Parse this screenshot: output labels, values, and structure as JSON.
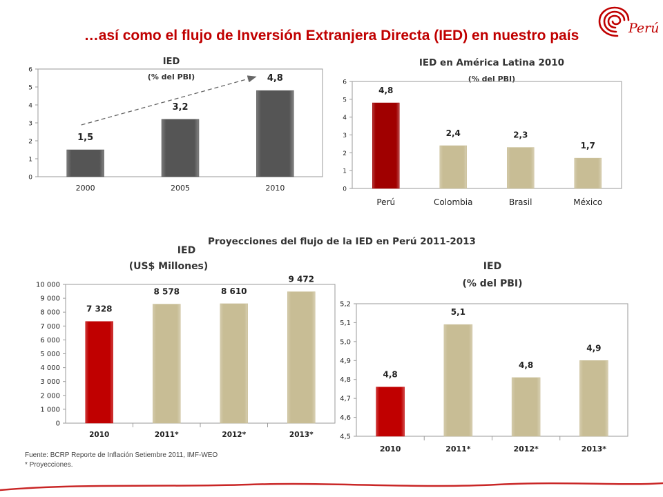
{
  "page": {
    "title": "…así como el flujo de Inversión Extranjera Directa (IED) en nuestro país",
    "logo_text": "Perú",
    "section_title": "Proyecciones del flujo de la IED en Perú 2011-2013",
    "footnote_source": "Fuente: BCRP Reporte de Inflación Setiembre 2011, IMF-WEO",
    "footnote_note": "* Proyecciones.",
    "accent_color": "#c00000"
  },
  "chart_data": [
    {
      "type": "bar",
      "title": "IED",
      "subtitle": "(% del PBI)",
      "categories": [
        "2000",
        "2005",
        "2010"
      ],
      "values": [
        1.5,
        3.2,
        4.8
      ],
      "data_labels": [
        "1,5",
        "3,2",
        "4,8"
      ],
      "ylim": [
        0,
        6
      ],
      "yticks": [
        "0",
        "1",
        "2",
        "3",
        "4",
        "5",
        "6"
      ],
      "colors": [
        "#555555",
        "#555555",
        "#555555"
      ],
      "grid": false,
      "trend_arrow": true
    },
    {
      "type": "bar",
      "title": "IED en América Latina 2010",
      "subtitle": "(% del PBI)",
      "categories": [
        "Perú",
        "Colombia",
        "Brasil",
        "México"
      ],
      "values": [
        4.8,
        2.4,
        2.3,
        1.7
      ],
      "data_labels": [
        "4,8",
        "2,4",
        "2,3",
        "1,7"
      ],
      "ylim": [
        0,
        6
      ],
      "yticks": [
        "0",
        "1",
        "2",
        "3",
        "4",
        "5",
        "6"
      ],
      "colors": [
        "#a00000",
        "#c8bd95",
        "#c8bd95",
        "#c8bd95"
      ],
      "grid": false
    },
    {
      "type": "bar",
      "title": "IED",
      "subtitle": "(US$ Millones)",
      "categories": [
        "2010",
        "2011*",
        "2012*",
        "2013*"
      ],
      "values": [
        7328,
        8578,
        8610,
        9472
      ],
      "data_labels": [
        "7 328",
        "8 578",
        "8 610",
        "9 472"
      ],
      "ylim": [
        0,
        10000
      ],
      "yticks": [
        "0",
        "1 000",
        "2 000",
        "3 000",
        "4 000",
        "5 000",
        "6 000",
        "7 000",
        "8 000",
        "9 000",
        "10 000"
      ],
      "colors": [
        "#c00000",
        "#c8bd95",
        "#c8bd95",
        "#c8bd95"
      ],
      "grid": false
    },
    {
      "type": "bar",
      "title": "IED",
      "subtitle": "(% del PBI)",
      "categories": [
        "2010",
        "2011*",
        "2012*",
        "2013*"
      ],
      "values": [
        4.76,
        5.09,
        4.81,
        4.9
      ],
      "data_labels": [
        "4,8",
        "5,1",
        "4,8",
        "4,9"
      ],
      "ylim": [
        4.5,
        5.2
      ],
      "yticks": [
        "4,5",
        "4,6",
        "4,7",
        "4,8",
        "4,9",
        "5,0",
        "5,1",
        "5,2"
      ],
      "colors": [
        "#c00000",
        "#c8bd95",
        "#c8bd95",
        "#c8bd95"
      ],
      "grid": false
    }
  ]
}
